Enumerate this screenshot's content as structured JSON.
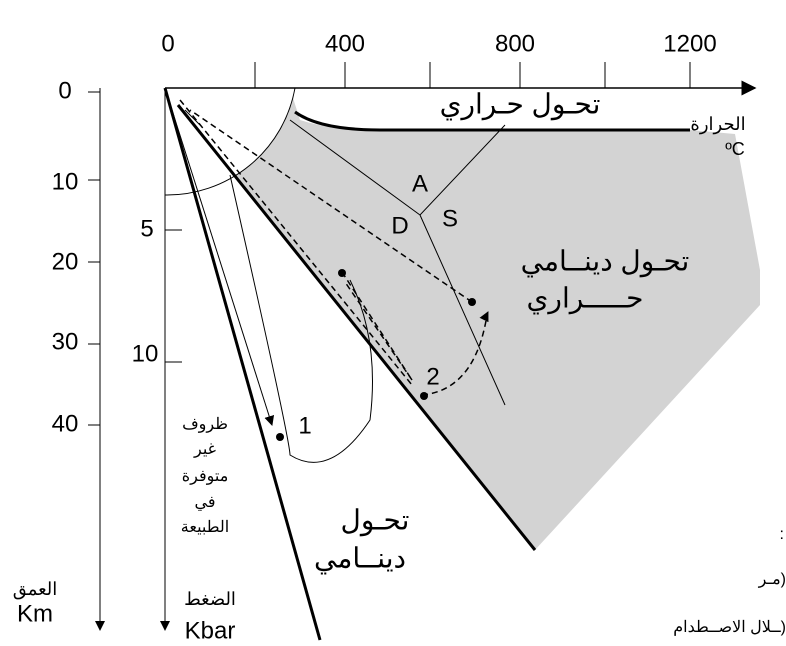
{
  "top_axis": {
    "ticks": [
      "0",
      "400",
      "800",
      "1200"
    ],
    "label": "الحرارة",
    "unit": "ºC"
  },
  "depth_axis": {
    "ticks": [
      "0",
      "10",
      "20",
      "30",
      "40"
    ],
    "label": "العمق",
    "unit": "Km"
  },
  "pressure_axis": {
    "ticks": [
      "5",
      "10"
    ],
    "label": "الضغط",
    "unit": "Kbar"
  },
  "zones": {
    "thermal": "تحـول حـراري",
    "dynamo_thermal": [
      "تحـول دينــامي",
      "حـــــراري"
    ],
    "dynamic": [
      "تحـول",
      "دينــامي"
    ],
    "unnatural": [
      "ظروف",
      "غير",
      "متوفرة",
      "في",
      "الطبيعة"
    ]
  },
  "minerals": {
    "a": "A",
    "d": "D",
    "s": "S"
  },
  "points": {
    "p1": "1",
    "p2": "2"
  },
  "clipped": [
    ":",
    "مـر)",
    "ــلال الاصــطدام)"
  ]
}
